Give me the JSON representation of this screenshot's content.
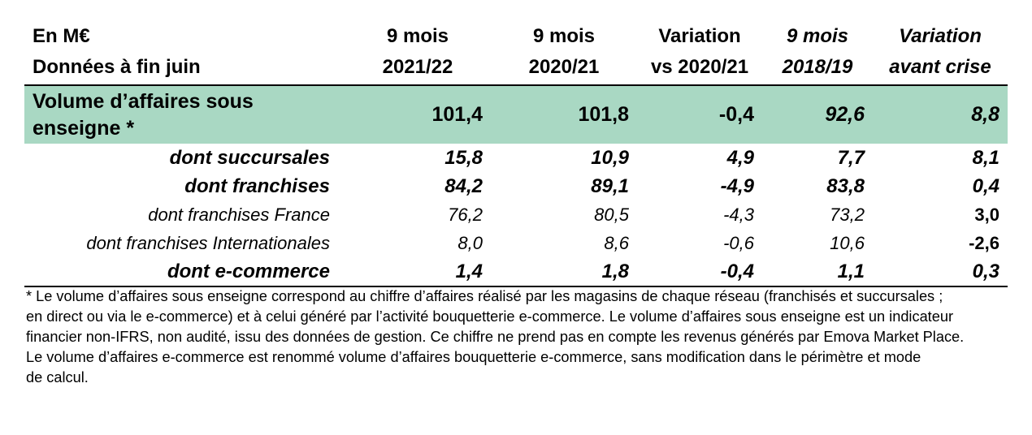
{
  "header": {
    "col0": [
      "En M€",
      "Données à fin juin"
    ],
    "col1": [
      "9 mois",
      "2021/22"
    ],
    "col2": [
      "9 mois",
      "2020/21"
    ],
    "col3": [
      "Variation",
      "vs 2020/21"
    ],
    "col4": [
      "9 mois",
      "2018/19"
    ],
    "col5": [
      "Variation",
      "avant crise"
    ]
  },
  "total_row": {
    "label": [
      "Volume d’affaires sous",
      "enseigne *"
    ],
    "values": [
      "101,4",
      "101,8",
      "-0,4",
      "92,6",
      "8,8"
    ]
  },
  "rows": [
    {
      "label": "dont succursales",
      "values": [
        "15,8",
        "10,9",
        "4,9",
        "7,7",
        "8,1"
      ]
    },
    {
      "label": "dont franchises",
      "values": [
        "84,2",
        "89,1",
        "-4,9",
        "83,8",
        "0,4"
      ]
    },
    {
      "label": "dont franchises France",
      "values": [
        "76,2",
        "80,5",
        "-4,3",
        "73,2",
        "3,0"
      ]
    },
    {
      "label": "dont franchises Internationales",
      "values": [
        "8,0",
        "8,6",
        "-0,6",
        "10,6",
        "-2,6"
      ]
    },
    {
      "label": "dont e-commerce",
      "values": [
        "1,4",
        "1,8",
        "-0,4",
        "1,1",
        "0,3"
      ]
    }
  ],
  "footnote": [
    "* Le volume d’affaires sous enseigne correspond au chiffre d’affaires réalisé par les magasins de chaque réseau (franchisés et succursales ;",
    "en direct ou via le e-commerce) et à celui généré par l’activité bouquetterie e-commerce. Le volume d’affaires sous enseigne est un indicateur",
    "financier non-IFRS, non audité, issu des données de gestion. Ce chiffre ne prend pas en compte les revenus générés par Emova Market Place.",
    "Le volume d’affaires e-commerce est renommé volume d’affaires bouquetterie e-commerce, sans modification dans le périmètre et mode",
    "de calcul."
  ],
  "colors": {
    "highlight_row": "#a9d8c3",
    "rules": "#000000"
  }
}
